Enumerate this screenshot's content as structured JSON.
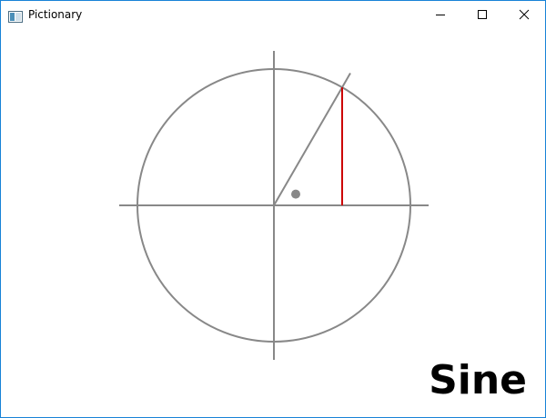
{
  "window": {
    "title": "Pictionary",
    "icons": {
      "app": "app-window-icon",
      "minimize": "minimize-icon",
      "maximize": "maximize-icon",
      "close": "close-icon"
    },
    "border_color": "#1883d7"
  },
  "drawing": {
    "word": "Sine",
    "colors": {
      "stroke": "#888888",
      "highlight": "#cc0000"
    },
    "angle_degrees": 60
  }
}
